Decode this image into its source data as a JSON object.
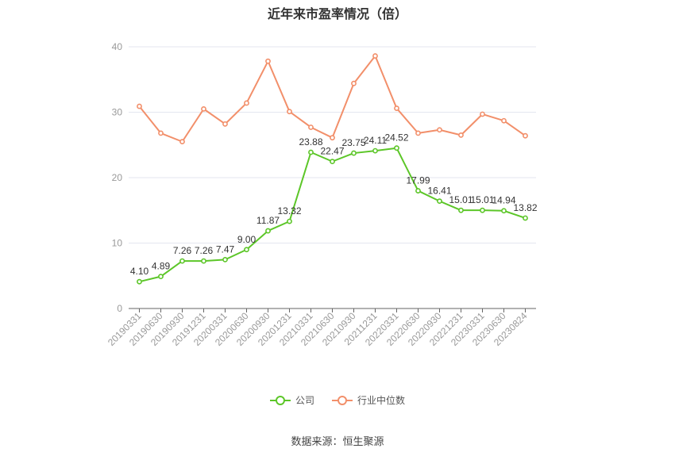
{
  "title": "近年来市盈率情况（倍）",
  "source": "数据来源：恒生聚源",
  "colors": {
    "company": "#5cc628",
    "industry": "#f28f6a",
    "grid": "#e3e6ef",
    "axis": "#999999",
    "label": "#333333"
  },
  "chart_data": {
    "type": "line",
    "title": "近年来市盈率情况（倍）",
    "xlabel": "",
    "ylabel": "",
    "ylim": [
      0,
      40
    ],
    "yticks": [
      0,
      10,
      20,
      30,
      40
    ],
    "grid": true,
    "legend": "bottom",
    "categories": [
      "20190331",
      "20190630",
      "20190930",
      "20191231",
      "20200331",
      "20200630",
      "20200930",
      "20201231",
      "20210331",
      "20210630",
      "20210930",
      "20211231",
      "20220331",
      "20220630",
      "20220930",
      "20221231",
      "20230331",
      "20230630",
      "20230824"
    ],
    "series": [
      {
        "name": "公司",
        "color": "#5cc628",
        "show_labels": true,
        "values": [
          4.1,
          4.89,
          7.26,
          7.26,
          7.47,
          9.0,
          11.87,
          13.32,
          23.88,
          22.47,
          23.75,
          24.11,
          24.52,
          17.99,
          16.41,
          15.01,
          15.01,
          14.94,
          13.82
        ],
        "labels": [
          "4.10",
          "4.89",
          "7.26",
          "7.26",
          "7.47",
          "9.00",
          "11.87",
          "13.32",
          "23.88",
          "22.47",
          "23.75",
          "24.11",
          "24.52",
          "17.99",
          "16.41",
          "15.01",
          "15.01",
          "14.94",
          "13.82"
        ]
      },
      {
        "name": "行业中位数",
        "color": "#f28f6a",
        "show_labels": false,
        "values": [
          30.9,
          26.8,
          25.5,
          30.5,
          28.2,
          31.4,
          37.8,
          30.1,
          27.7,
          26.1,
          34.4,
          38.6,
          30.6,
          26.8,
          27.3,
          26.5,
          29.7,
          28.7,
          26.4
        ]
      }
    ]
  }
}
